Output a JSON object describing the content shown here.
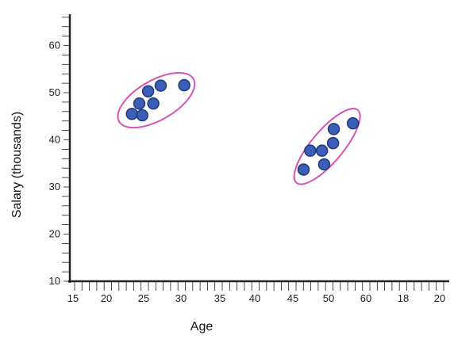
{
  "chart_data": {
    "type": "scatter",
    "title": "",
    "xlabel": "Age",
    "ylabel": "Salary (thousands)",
    "x_tick_labels": [
      "15",
      "20",
      "25",
      "30",
      "35",
      "40",
      "45",
      "50",
      "60",
      "18",
      "20"
    ],
    "y_tick_labels": [
      "10",
      "20",
      "30",
      "40",
      "50",
      "60"
    ],
    "ylim": [
      10,
      67
    ],
    "grid": false,
    "series": [
      {
        "points": [
          {
            "x": 23.0,
            "y": 45.5
          },
          {
            "x": 24.0,
            "y": 47.7
          },
          {
            "x": 24.4,
            "y": 45.2
          },
          {
            "x": 25.2,
            "y": 50.3
          },
          {
            "x": 25.9,
            "y": 47.7
          },
          {
            "x": 26.9,
            "y": 51.5
          },
          {
            "x": 30.1,
            "y": 51.6
          },
          {
            "x": 46.3,
            "y": 33.7
          },
          {
            "x": 47.2,
            "y": 37.7
          },
          {
            "x": 48.8,
            "y": 37.7
          },
          {
            "x": 49.1,
            "y": 34.8
          },
          {
            "x": 50.3,
            "y": 39.3
          },
          {
            "x": 50.4,
            "y": 42.3
          },
          {
            "x": 53.0,
            "y": 43.5
          }
        ]
      }
    ],
    "clusters": [
      {
        "center": {
          "x": 26.3,
          "y": 48.4
        },
        "color": "#d655b8"
      },
      {
        "center": {
          "x": 49.5,
          "y": 38.6
        },
        "color": "#d655b8"
      }
    ],
    "colors": {
      "point_fill": "#3b5fb8",
      "point_stroke": "#1f3a7a",
      "cluster_outline": "#d655b8",
      "axis": "#222222"
    }
  }
}
